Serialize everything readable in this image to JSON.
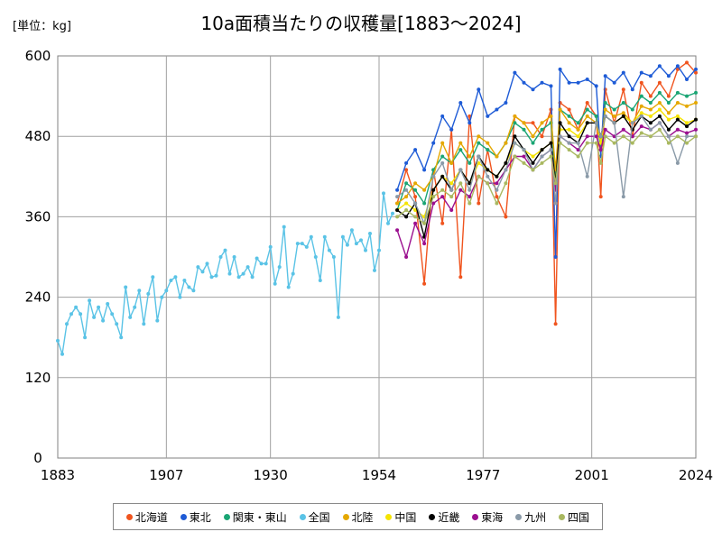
{
  "unit_label": "[単位：kg]",
  "chart_data": {
    "type": "line",
    "title": "10a面積当たりの収穫量[1883～2024]",
    "xlabel": "",
    "ylabel": "",
    "xlim": [
      1883,
      2024
    ],
    "ylim": [
      0,
      600
    ],
    "x_ticks": [
      "1883",
      "1907",
      "1930",
      "1954",
      "1977",
      "2001",
      "2024"
    ],
    "y_ticks": [
      "0",
      "120",
      "240",
      "360",
      "480",
      "600"
    ],
    "grid": true,
    "legend_position": "bottom",
    "series": [
      {
        "name": "北海道",
        "color": "#f0541e",
        "x": [
          1958,
          1960,
          1962,
          1964,
          1966,
          1968,
          1970,
          1972,
          1974,
          1976,
          1978,
          1980,
          1982,
          1984,
          1986,
          1988,
          1990,
          1992,
          1993,
          1994,
          1996,
          1998,
          2000,
          2002,
          2003,
          2004,
          2006,
          2008,
          2010,
          2012,
          2014,
          2016,
          2018,
          2020,
          2022,
          2024
        ],
        "y": [
          380,
          430,
          390,
          260,
          430,
          350,
          490,
          270,
          510,
          380,
          460,
          390,
          360,
          510,
          500,
          500,
          480,
          520,
          200,
          530,
          520,
          490,
          530,
          510,
          390,
          550,
          500,
          550,
          480,
          560,
          540,
          560,
          540,
          580,
          590,
          575
        ]
      },
      {
        "name": "東北",
        "color": "#1e5bd6",
        "x": [
          1958,
          1960,
          1962,
          1964,
          1966,
          1968,
          1970,
          1972,
          1974,
          1976,
          1978,
          1980,
          1982,
          1984,
          1986,
          1988,
          1990,
          1992,
          1993,
          1994,
          1996,
          1998,
          2000,
          2002,
          2003,
          2004,
          2006,
          2008,
          2010,
          2012,
          2014,
          2016,
          2018,
          2020,
          2022,
          2024
        ],
        "y": [
          400,
          440,
          460,
          430,
          470,
          510,
          490,
          530,
          500,
          550,
          510,
          520,
          530,
          575,
          560,
          550,
          560,
          555,
          300,
          580,
          560,
          560,
          565,
          555,
          450,
          570,
          560,
          575,
          550,
          575,
          570,
          585,
          570,
          585,
          565,
          580
        ]
      },
      {
        "name": "関東・東山",
        "color": "#1aa574",
        "x": [
          1958,
          1960,
          1962,
          1964,
          1966,
          1968,
          1970,
          1972,
          1974,
          1976,
          1978,
          1980,
          1982,
          1984,
          1986,
          1988,
          1990,
          1992,
          1993,
          1994,
          1996,
          1998,
          2000,
          2002,
          2003,
          2004,
          2006,
          2008,
          2010,
          2012,
          2014,
          2016,
          2018,
          2020,
          2022,
          2024
        ],
        "y": [
          370,
          410,
          400,
          380,
          430,
          450,
          440,
          460,
          440,
          470,
          460,
          450,
          470,
          500,
          490,
          470,
          490,
          500,
          420,
          520,
          510,
          500,
          520,
          510,
          460,
          530,
          520,
          530,
          520,
          540,
          530,
          545,
          530,
          545,
          540,
          545
        ]
      },
      {
        "name": "全国",
        "color": "#5ac3e6",
        "x": [
          1883,
          1884,
          1885,
          1886,
          1887,
          1888,
          1889,
          1890,
          1891,
          1892,
          1893,
          1894,
          1895,
          1896,
          1897,
          1898,
          1899,
          1900,
          1901,
          1902,
          1903,
          1904,
          1905,
          1906,
          1907,
          1908,
          1909,
          1910,
          1911,
          1912,
          1913,
          1914,
          1915,
          1916,
          1917,
          1918,
          1919,
          1920,
          1921,
          1922,
          1923,
          1924,
          1925,
          1926,
          1927,
          1928,
          1929,
          1930,
          1931,
          1932,
          1933,
          1934,
          1935,
          1936,
          1937,
          1938,
          1939,
          1940,
          1941,
          1942,
          1943,
          1944,
          1945,
          1946,
          1947,
          1948,
          1949,
          1950,
          1951,
          1952,
          1953,
          1954,
          1955,
          1956,
          1957
        ],
        "y": [
          175,
          155,
          200,
          215,
          225,
          215,
          180,
          235,
          210,
          225,
          205,
          230,
          215,
          200,
          180,
          255,
          210,
          225,
          250,
          200,
          245,
          270,
          205,
          240,
          250,
          265,
          270,
          240,
          265,
          255,
          250,
          285,
          278,
          290,
          270,
          272,
          300,
          310,
          275,
          300,
          270,
          275,
          285,
          270,
          298,
          290,
          290,
          315,
          260,
          285,
          345,
          255,
          275,
          320,
          320,
          315,
          330,
          300,
          265,
          330,
          310,
          300,
          210,
          330,
          318,
          340,
          320,
          325,
          310,
          335,
          280,
          310,
          395,
          350,
          365
        ]
      },
      {
        "name": "北陸",
        "color": "#e5a800",
        "x": [
          1958,
          1960,
          1962,
          1964,
          1966,
          1968,
          1970,
          1972,
          1974,
          1976,
          1978,
          1980,
          1982,
          1984,
          1986,
          1988,
          1990,
          1992,
          1993,
          1994,
          1996,
          1998,
          2000,
          2002,
          2003,
          2004,
          2006,
          2008,
          2010,
          2012,
          2014,
          2016,
          2018,
          2020,
          2022,
          2024
        ],
        "y": [
          380,
          390,
          410,
          400,
          420,
          470,
          440,
          470,
          450,
          480,
          470,
          450,
          470,
          510,
          500,
          480,
          500,
          510,
          430,
          520,
          500,
          490,
          510,
          500,
          470,
          520,
          510,
          515,
          500,
          525,
          520,
          530,
          515,
          530,
          525,
          530
        ]
      },
      {
        "name": "中国",
        "color": "#f5e400",
        "x": [
          1958,
          1960,
          1962,
          1964,
          1966,
          1968,
          1970,
          1972,
          1974,
          1976,
          1978,
          1980,
          1982,
          1984,
          1986,
          1988,
          1990,
          1992,
          1993,
          1994,
          1996,
          1998,
          2000,
          2002,
          2003,
          2004,
          2006,
          2008,
          2010,
          2012,
          2014,
          2016,
          2018,
          2020,
          2022,
          2024
        ],
        "y": [
          370,
          380,
          370,
          360,
          400,
          420,
          410,
          430,
          410,
          440,
          430,
          420,
          440,
          470,
          460,
          450,
          460,
          470,
          410,
          490,
          490,
          480,
          500,
          500,
          470,
          510,
          500,
          510,
          500,
          515,
          510,
          520,
          505,
          510,
          500,
          505
        ]
      },
      {
        "name": "近畿",
        "color": "#000000",
        "x": [
          1958,
          1960,
          1962,
          1964,
          1966,
          1968,
          1970,
          1972,
          1974,
          1976,
          1978,
          1980,
          1982,
          1984,
          1986,
          1988,
          1990,
          1992,
          1993,
          1994,
          1996,
          1998,
          2000,
          2002,
          2003,
          2004,
          2006,
          2008,
          2010,
          2012,
          2014,
          2016,
          2018,
          2020,
          2022,
          2024
        ],
        "y": [
          370,
          360,
          380,
          330,
          400,
          420,
          400,
          430,
          410,
          450,
          430,
          420,
          440,
          480,
          460,
          440,
          460,
          470,
          410,
          500,
          480,
          470,
          500,
          500,
          480,
          510,
          500,
          510,
          490,
          510,
          500,
          510,
          490,
          505,
          495,
          505
        ]
      },
      {
        "name": "東海",
        "color": "#9b0f8f",
        "x": [
          1958,
          1960,
          1962,
          1964,
          1966,
          1968,
          1970,
          1972,
          1974,
          1976,
          1978,
          1980,
          1982,
          1984,
          1986,
          1988,
          1990,
          1992,
          1993,
          1994,
          1996,
          1998,
          2000,
          2002,
          2003,
          2004,
          2006,
          2008,
          2010,
          2012,
          2014,
          2016,
          2018,
          2020,
          2022,
          2024
        ],
        "y": [
          340,
          300,
          350,
          320,
          380,
          390,
          370,
          400,
          390,
          420,
          410,
          410,
          430,
          450,
          450,
          430,
          450,
          460,
          400,
          480,
          470,
          460,
          480,
          480,
          460,
          490,
          480,
          490,
          480,
          495,
          490,
          500,
          480,
          490,
          485,
          490
        ]
      },
      {
        "name": "九州",
        "color": "#8a9aa8",
        "x": [
          1958,
          1960,
          1962,
          1964,
          1966,
          1968,
          1970,
          1972,
          1974,
          1976,
          1978,
          1980,
          1982,
          1984,
          1986,
          1988,
          1990,
          1992,
          1993,
          1994,
          1996,
          1998,
          2000,
          2002,
          2003,
          2004,
          2006,
          2008,
          2010,
          2012,
          2014,
          2016,
          2018,
          2020,
          2022,
          2024
        ],
        "y": [
          390,
          400,
          380,
          350,
          420,
          440,
          400,
          430,
          400,
          450,
          420,
          400,
          430,
          470,
          460,
          430,
          450,
          460,
          380,
          480,
          470,
          470,
          420,
          500,
          480,
          510,
          500,
          390,
          500,
          510,
          490,
          500,
          480,
          440,
          480,
          480
        ]
      },
      {
        "name": "四国",
        "color": "#a9b860",
        "x": [
          1958,
          1960,
          1962,
          1964,
          1966,
          1968,
          1970,
          1972,
          1974,
          1976,
          1978,
          1980,
          1982,
          1984,
          1986,
          1988,
          1990,
          1992,
          1993,
          1994,
          1996,
          1998,
          2000,
          2002,
          2003,
          2004,
          2006,
          2008,
          2010,
          2012,
          2014,
          2016,
          2018,
          2020,
          2022,
          2024
        ],
        "y": [
          360,
          370,
          360,
          350,
          390,
          400,
          390,
          410,
          380,
          420,
          410,
          380,
          410,
          450,
          440,
          430,
          440,
          450,
          410,
          470,
          460,
          450,
          470,
          470,
          440,
          480,
          470,
          480,
          470,
          485,
          480,
          490,
          470,
          480,
          470,
          480
        ]
      }
    ]
  }
}
